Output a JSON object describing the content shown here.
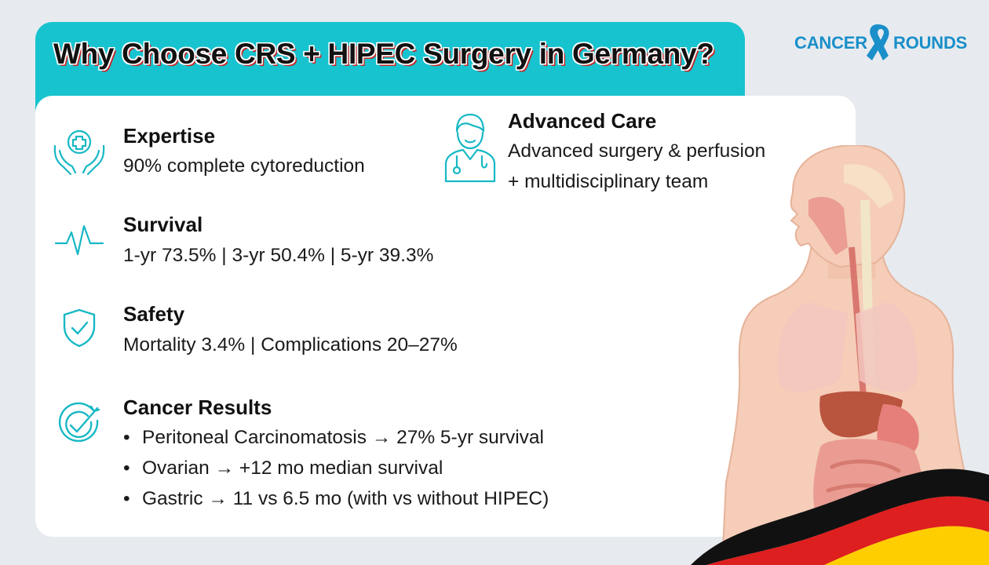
{
  "header": {
    "title": "Why Choose CRS + HIPEC Surgery in Germany?"
  },
  "brand": {
    "left": "CANCER",
    "right": "ROUNDS"
  },
  "colors": {
    "accent": "#17c3cf",
    "brand": "#1a8fc9",
    "title_shadow": "#c62828",
    "background": "#e7ebef"
  },
  "items": {
    "expertise": {
      "icon": "hands-medical-icon",
      "title": "Expertise",
      "text": "90% complete cytoreduction"
    },
    "advanced_care": {
      "icon": "doctor-icon",
      "title": "Advanced Care",
      "line1": "Advanced surgery & perfusion",
      "line2": "+ multidisciplinary team"
    },
    "survival": {
      "icon": "heartbeat-icon",
      "title": "Survival",
      "text": "1-yr 73.5% | 3-yr 50.4% | 5-yr 39.3%"
    },
    "safety": {
      "icon": "shield-check-icon",
      "title": "Safety",
      "text": "Mortality 3.4% | Complications 20–27%"
    },
    "results": {
      "icon": "target-check-icon",
      "title": "Cancer Results",
      "bullets": [
        "Peritoneal Carcinomatosis → 27% 5-yr survival",
        "Ovarian → +12 mo median survival",
        "Gastric → 11 vs 6.5 mo (with vs without HIPEC)"
      ]
    }
  },
  "illustrations": {
    "anatomy": "human-anatomy-illustration",
    "flag": "germany-flag-illustration"
  }
}
